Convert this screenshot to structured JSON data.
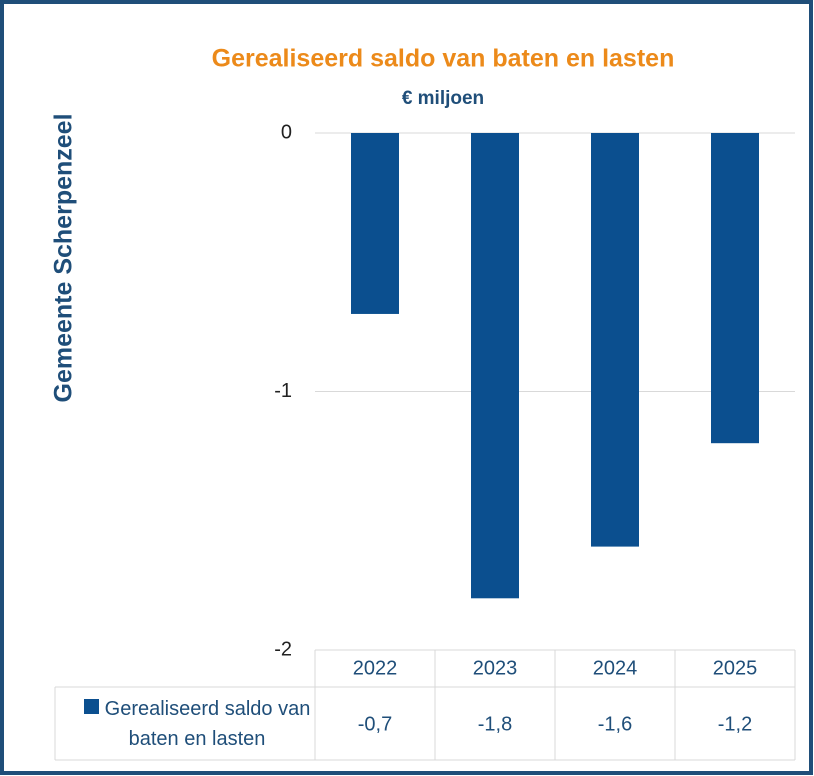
{
  "chart_data": {
    "type": "bar",
    "title": "Gerealiseerd saldo van baten en lasten",
    "subtitle": "€ miljoen",
    "y_label": "Gemeente Scherpenzeel",
    "categories": [
      "2022",
      "2023",
      "2024",
      "2025"
    ],
    "series": [
      {
        "name": "Gerealiseerd saldo van baten en lasten",
        "color": "#0b4f8f",
        "values": [
          -0.7,
          -1.8,
          -1.6,
          -1.2
        ],
        "value_labels": [
          "-0,7",
          "-1,8",
          "-1,6",
          "-1,2"
        ]
      }
    ],
    "ylim": [
      -2,
      0
    ],
    "yticks": [
      0,
      -1,
      -2
    ],
    "grid": true
  }
}
